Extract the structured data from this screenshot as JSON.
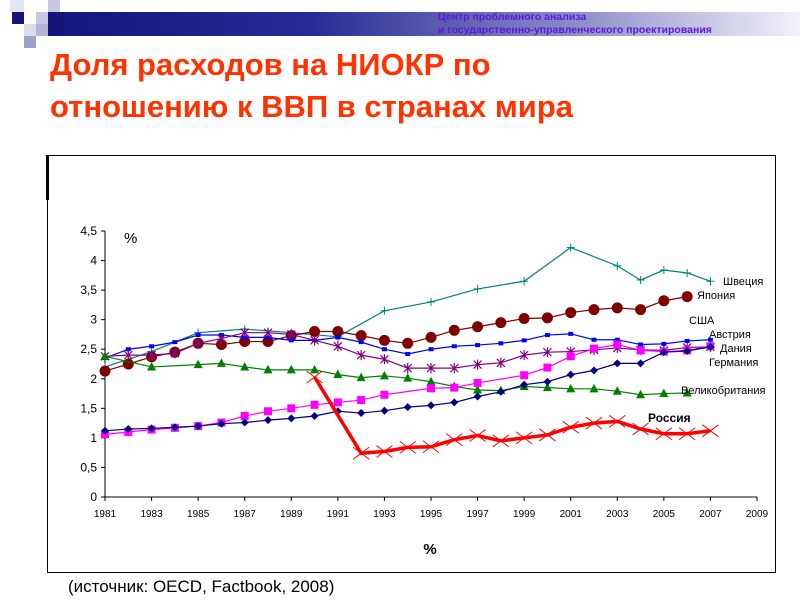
{
  "header": {
    "org_line1": "Центр проблемного анализа",
    "org_line2": "и государственно-управленческого проектирования"
  },
  "title_line1": "Доля расходов на НИОКР по",
  "title_line2": "отношению к ВВП в странах мира",
  "source": "(источник: OECD, Factbook, 2008)",
  "chart_data": {
    "type": "line",
    "title": "",
    "ylabel": "%",
    "xlabel": "%",
    "xlim": [
      1981,
      2009
    ],
    "ylim": [
      0,
      4.5
    ],
    "xticks": [
      "1981",
      "1983",
      "1985",
      "1987",
      "1989",
      "1991",
      "1993",
      "1995",
      "1997",
      "1999",
      "2001",
      "2003",
      "2005",
      "2007",
      "2009"
    ],
    "yticks": [
      "0",
      "0,5",
      "1",
      "1,5",
      "2",
      "2,5",
      "3",
      "3,5",
      "4",
      "4,5"
    ],
    "grid": false,
    "series": [
      {
        "name": "Швеция",
        "color": "#008080",
        "marker": "plus",
        "x": [
          1981,
          1983,
          1985,
          1987,
          1989,
          1991,
          1993,
          1995,
          1997,
          1999,
          2001,
          2003,
          2004,
          2005,
          2006,
          2007
        ],
        "values": [
          2.2,
          2.46,
          2.78,
          2.84,
          2.78,
          2.71,
          3.15,
          3.3,
          3.52,
          3.65,
          4.22,
          3.91,
          3.67,
          3.84,
          3.79,
          3.65
        ]
      },
      {
        "name": "Япония",
        "color": "#800000",
        "marker": "circle",
        "x": [
          1981,
          1982,
          1983,
          1984,
          1985,
          1986,
          1987,
          1988,
          1989,
          1990,
          1991,
          1992,
          1993,
          1994,
          1995,
          1996,
          1997,
          1998,
          1999,
          2000,
          2001,
          2002,
          2003,
          2004,
          2005,
          2006
        ],
        "values": [
          2.13,
          2.25,
          2.37,
          2.45,
          2.6,
          2.58,
          2.63,
          2.63,
          2.73,
          2.8,
          2.8,
          2.73,
          2.65,
          2.6,
          2.7,
          2.82,
          2.88,
          2.95,
          3.02,
          3.03,
          3.12,
          3.17,
          3.2,
          3.17,
          3.32,
          3.39
        ]
      },
      {
        "name": "США",
        "color": "#0000ff",
        "marker": "smallsquare",
        "x": [
          1981,
          1982,
          1983,
          1984,
          1985,
          1986,
          1987,
          1988,
          1989,
          1990,
          1991,
          1992,
          1993,
          1994,
          1995,
          1996,
          1997,
          1998,
          1999,
          2000,
          2001,
          2002,
          2003,
          2004,
          2005,
          2006,
          2007
        ],
        "values": [
          2.35,
          2.5,
          2.55,
          2.62,
          2.74,
          2.74,
          2.7,
          2.7,
          2.65,
          2.65,
          2.7,
          2.62,
          2.5,
          2.42,
          2.5,
          2.55,
          2.57,
          2.6,
          2.65,
          2.74,
          2.76,
          2.66,
          2.66,
          2.58,
          2.59,
          2.64,
          2.66
        ]
      },
      {
        "name": "Германия",
        "color": "#800080",
        "marker": "asterisk",
        "x": [
          1981,
          1982,
          1983,
          1984,
          1985,
          1986,
          1987,
          1988,
          1989,
          1990,
          1991,
          1992,
          1993,
          1994,
          1995,
          1996,
          1997,
          1998,
          1999,
          2000,
          2001,
          2002,
          2003,
          2004,
          2005,
          2006,
          2007
        ],
        "values": [
          2.38,
          2.4,
          2.4,
          2.43,
          2.6,
          2.68,
          2.78,
          2.78,
          2.75,
          2.65,
          2.55,
          2.4,
          2.33,
          2.18,
          2.18,
          2.18,
          2.24,
          2.27,
          2.4,
          2.45,
          2.46,
          2.49,
          2.52,
          2.49,
          2.48,
          2.53,
          2.54
        ]
      },
      {
        "name": "Великобритания",
        "color": "#008000",
        "marker": "triangle",
        "x": [
          1981,
          1983,
          1985,
          1986,
          1987,
          1988,
          1989,
          1990,
          1991,
          1992,
          1993,
          1994,
          1995,
          1996,
          1997,
          1998,
          1999,
          2000,
          2001,
          2002,
          2003,
          2004,
          2005,
          2006
        ],
        "values": [
          2.38,
          2.2,
          2.24,
          2.26,
          2.2,
          2.15,
          2.15,
          2.15,
          2.07,
          2.02,
          2.05,
          2.01,
          1.95,
          1.87,
          1.81,
          1.8,
          1.87,
          1.85,
          1.83,
          1.83,
          1.79,
          1.73,
          1.75,
          1.76
        ]
      },
      {
        "name": "Дания",
        "color": "#ff00ff",
        "marker": "square",
        "x": [
          1981,
          1982,
          1983,
          1984,
          1985,
          1986,
          1987,
          1988,
          1989,
          1990,
          1991,
          1992,
          1993,
          1995,
          1996,
          1997,
          1999,
          2000,
          2001,
          2002,
          2003,
          2004,
          2005,
          2006,
          2007
        ],
        "values": [
          1.06,
          1.1,
          1.14,
          1.17,
          1.2,
          1.26,
          1.37,
          1.45,
          1.5,
          1.56,
          1.6,
          1.64,
          1.73,
          1.84,
          1.85,
          1.93,
          2.06,
          2.19,
          2.38,
          2.51,
          2.58,
          2.48,
          2.46,
          2.48,
          2.55
        ]
      },
      {
        "name": "Австрия",
        "color": "#000080",
        "marker": "diamond",
        "x": [
          1981,
          1982,
          1983,
          1984,
          1985,
          1986,
          1987,
          1988,
          1989,
          1990,
          1991,
          1992,
          1993,
          1994,
          1995,
          1996,
          1997,
          1998,
          1999,
          2000,
          2001,
          2002,
          2003,
          2004,
          2005,
          2006,
          2007
        ],
        "values": [
          1.12,
          1.15,
          1.16,
          1.18,
          1.2,
          1.24,
          1.26,
          1.3,
          1.33,
          1.37,
          1.45,
          1.42,
          1.46,
          1.52,
          1.55,
          1.6,
          1.7,
          1.78,
          1.9,
          1.95,
          2.07,
          2.14,
          2.26,
          2.26,
          2.45,
          2.47,
          2.54
        ]
      },
      {
        "name": "Россия",
        "color": "#ff0000",
        "marker": "x",
        "x": [
          1990,
          1992,
          1993,
          1994,
          1995,
          1996,
          1997,
          1998,
          1999,
          2000,
          2001,
          2002,
          2003,
          2004,
          2005,
          2006,
          2007
        ],
        "values": [
          2.03,
          0.74,
          0.77,
          0.84,
          0.85,
          0.97,
          1.04,
          0.95,
          1.0,
          1.05,
          1.18,
          1.25,
          1.28,
          1.15,
          1.07,
          1.07,
          1.12
        ]
      }
    ]
  }
}
